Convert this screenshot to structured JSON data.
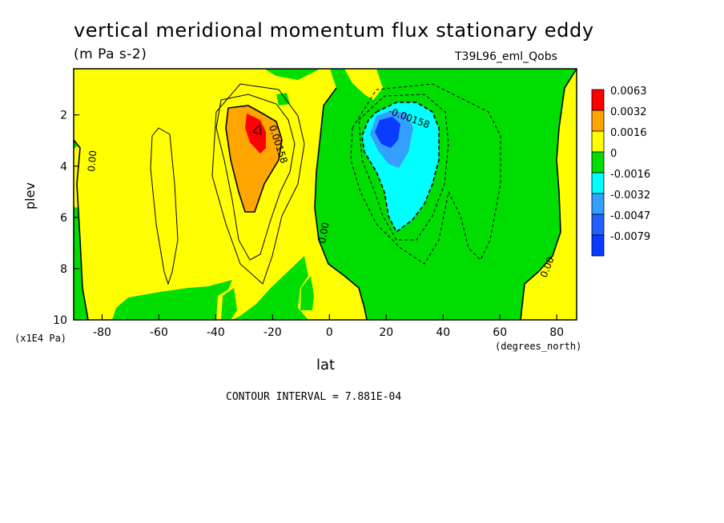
{
  "header": {
    "title": "vertical meridional momentum flux stationary eddy",
    "units": "(m Pa s-2)",
    "run": "T39L96_eml_Qobs",
    "contour_interval": "CONTOUR INTERVAL = 7.881E-04"
  },
  "axes": {
    "xlabel": "lat",
    "xunit": "(degrees_north)",
    "ylabel": "plev",
    "yunit": "(x1E4 Pa)"
  },
  "colors": {
    "c0063": "#ff0000",
    "c0032": "#ffa500",
    "c0016": "#ffff00",
    "c0": "#00dd00",
    "cm0016": "#00ffff",
    "cm0032": "#33a0ff",
    "cm0047": "#2060ff",
    "cm0079": "#0a3cff"
  },
  "contour_labels": [
    "0.00",
    "0.00158",
    "-0.00158",
    "0.00",
    "0.00"
  ],
  "chart_data": {
    "type": "contour",
    "title": "vertical meridional momentum flux stationary eddy",
    "subtitle": "(m Pa s-2)",
    "xlabel": "lat",
    "ylabel": "plev",
    "xlim": [
      -90,
      87
    ],
    "ylim": [
      10,
      0.2
    ],
    "xticks": [
      -80,
      -60,
      -40,
      -20,
      0,
      20,
      40,
      60,
      80
    ],
    "yticks": [
      2,
      4,
      6,
      8,
      10
    ],
    "contour_interval": 0.0007881,
    "legend": {
      "placement": "right",
      "levels": [
        "0.0063",
        "0.0032",
        "0.0016",
        "0",
        "-0.0016",
        "-0.0032",
        "-0.0047",
        "-0.0079"
      ]
    },
    "features": [
      {
        "label": "positive maximum",
        "lat": -23,
        "plev": 2.7,
        "min_level": 0.0063
      },
      {
        "label": "negative minimum",
        "lat": 23,
        "plev": 2.8,
        "max_level": -0.0079
      }
    ]
  }
}
